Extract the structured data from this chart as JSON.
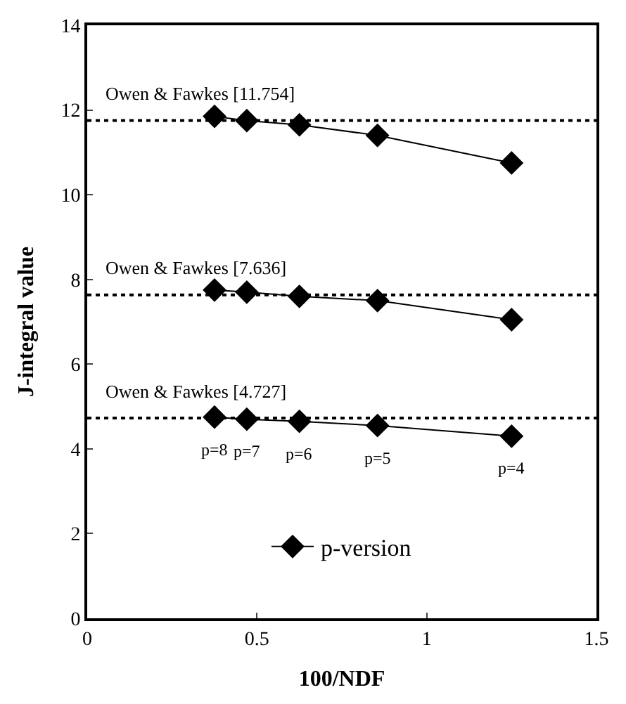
{
  "chart_data": {
    "type": "line",
    "xlabel": "100/NDF",
    "ylabel": "J-integral value",
    "x": [
      0.375,
      0.47,
      0.625,
      0.855,
      1.25
    ],
    "series": [
      {
        "name": "p-version",
        "color": "#000000",
        "values": [
          11.85,
          11.75,
          11.65,
          11.4,
          10.75
        ]
      },
      {
        "color": "#000000",
        "values": [
          7.75,
          7.7,
          7.6,
          7.5,
          7.05
        ]
      },
      {
        "color": "#000000",
        "values": [
          4.75,
          4.7,
          4.65,
          4.55,
          4.3
        ]
      }
    ],
    "xlim": [
      0,
      1.5
    ],
    "xticks": [
      0,
      0.5,
      1,
      1.5
    ],
    "ylim": [
      0,
      14
    ],
    "yticks": [
      0,
      2,
      4,
      6,
      8,
      10,
      12,
      14
    ],
    "ref_lines": [
      {
        "axis": "y",
        "value": 11.754,
        "label": "Owen & Fawkes [11.754]",
        "color": "#000000",
        "line_style": "dotted"
      },
      {
        "axis": "y",
        "value": 7.636,
        "label": "Owen & Fawkes [7.636]",
        "color": "#000000",
        "line_style": "dotted"
      },
      {
        "axis": "y",
        "value": 4.727,
        "label": "Owen & Fawkes [4.727]",
        "color": "#000000",
        "line_style": "dotted"
      }
    ],
    "annotations": [
      {
        "text": "p=8",
        "x": 0.375,
        "y": 4.75
      },
      {
        "text": "p=7",
        "x": 0.47,
        "y": 4.7
      },
      {
        "text": "p=6",
        "x": 0.625,
        "y": 4.65
      },
      {
        "text": "p=5",
        "x": 0.855,
        "y": 4.55
      },
      {
        "text": "p=4",
        "x": 1.25,
        "y": 4.3
      }
    ],
    "marker": "diamond",
    "line_style": "solid",
    "legend": "bottom"
  }
}
